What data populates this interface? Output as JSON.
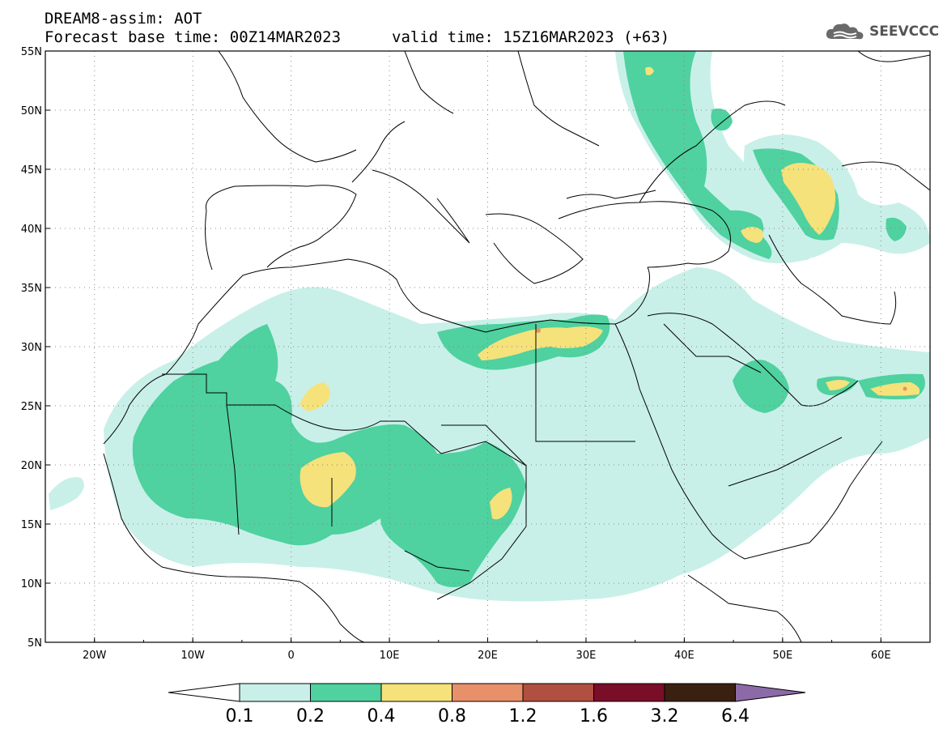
{
  "header": {
    "title_line1": "DREAM8-assim: AOT",
    "forecast_base": "Forecast base time: 00Z14MAR2023",
    "valid_time": "valid time: 15Z16MAR2023 (+63)"
  },
  "logo": {
    "text": "SEEVCCC",
    "icon": "cloud-icon"
  },
  "map": {
    "lon_labels": [
      "20W",
      "10W",
      "0",
      "10E",
      "20E",
      "30E",
      "40E",
      "50E",
      "60E"
    ],
    "lat_labels": [
      "55N",
      "50N",
      "45N",
      "40N",
      "35N",
      "30N",
      "25N",
      "20N",
      "15N",
      "10N",
      "5N"
    ],
    "lon_range": [
      -25,
      65
    ],
    "lat_range": [
      5,
      55
    ],
    "grid": "dotted"
  },
  "colorbar": {
    "labels": [
      "0.1",
      "0.2",
      "0.4",
      "0.8",
      "1.2",
      "1.6",
      "3.2",
      "6.4"
    ],
    "colors": [
      "#ffffff",
      "#c8f0e8",
      "#4fd1a0",
      "#f5e27a",
      "#e8906a",
      "#b05040",
      "#7a0e28",
      "#3a2010",
      "#8c6aa8"
    ]
  },
  "field_colors": {
    "level_0_1": "#c8f0e8",
    "level_0_2": "#4fd1a0",
    "level_0_4": "#f5e27a",
    "level_0_8": "#e8906a"
  }
}
